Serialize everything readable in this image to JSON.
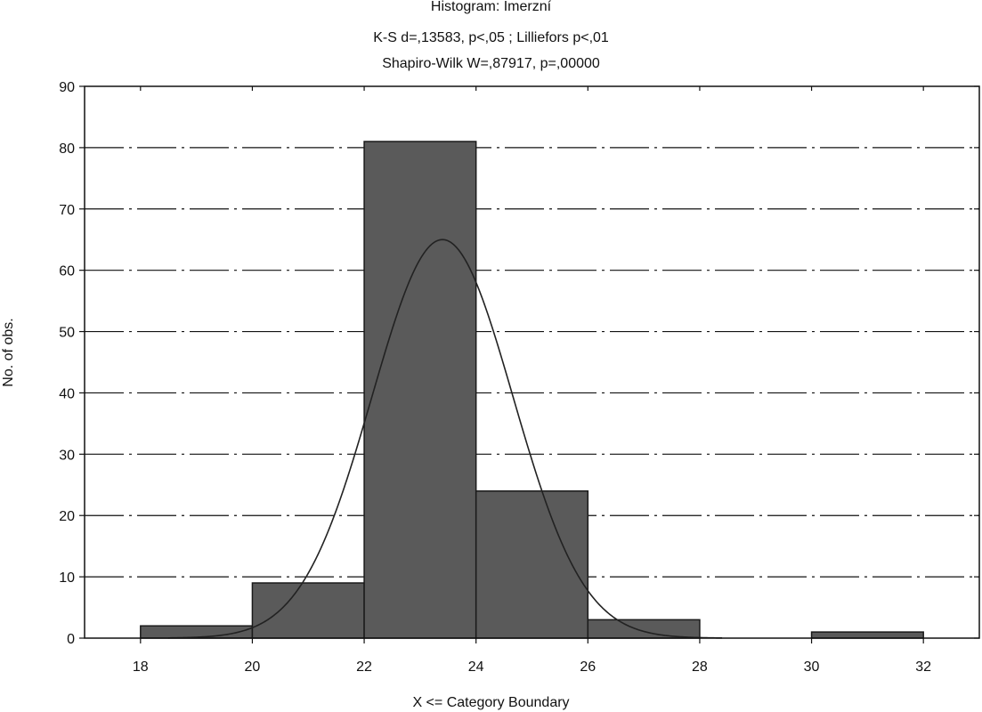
{
  "chart_data": {
    "type": "bar",
    "title": "Histogram: Imerzní",
    "subtitle": [
      "K-S d=,13583, p<,05 ; Lilliefors p<,01",
      "Shapiro-Wilk W=,87917, p=,00000"
    ],
    "xlabel": "X <= Category Boundary",
    "ylabel": "No. of obs.",
    "xlim": [
      17,
      33
    ],
    "ylim": [
      0,
      90
    ],
    "x_ticks": [
      18,
      20,
      22,
      24,
      26,
      28,
      30,
      32
    ],
    "y_ticks": [
      0,
      10,
      20,
      30,
      40,
      50,
      60,
      70,
      80,
      90
    ],
    "grid": true,
    "bins": [
      {
        "from": 18,
        "to": 20,
        "count": 2
      },
      {
        "from": 20,
        "to": 22,
        "count": 9
      },
      {
        "from": 22,
        "to": 24,
        "count": 81
      },
      {
        "from": 24,
        "to": 26,
        "count": 24
      },
      {
        "from": 26,
        "to": 28,
        "count": 3
      },
      {
        "from": 28,
        "to": 30,
        "count": 0
      },
      {
        "from": 30,
        "to": 32,
        "count": 1
      }
    ],
    "normal_curve": {
      "mean": 23.4,
      "sd": 1.26,
      "peak": 65
    },
    "colors": {
      "bar": "#5a5a5a",
      "bar_edge": "#1a1a1a",
      "grid": "#111111",
      "curve": "#222222"
    }
  }
}
